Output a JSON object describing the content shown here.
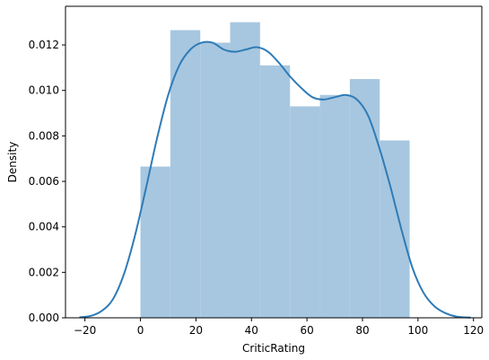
{
  "chart_data": {
    "type": "bar",
    "title": "",
    "xlabel": "CriticRating",
    "ylabel": "Density",
    "xlim": [
      -27,
      123
    ],
    "ylim": [
      0,
      0.0137
    ],
    "grid": false,
    "legend": "none",
    "x_ticks": [
      {
        "value": -20,
        "label": "−20"
      },
      {
        "value": 0,
        "label": "0"
      },
      {
        "value": 20,
        "label": "20"
      },
      {
        "value": 40,
        "label": "40"
      },
      {
        "value": 60,
        "label": "60"
      },
      {
        "value": 80,
        "label": "80"
      },
      {
        "value": 100,
        "label": "100"
      },
      {
        "value": 120,
        "label": "120"
      }
    ],
    "y_ticks": [
      {
        "value": 0,
        "label": "0.000"
      },
      {
        "value": 0.002,
        "label": "0.002"
      },
      {
        "value": 0.004,
        "label": "0.004"
      },
      {
        "value": 0.006,
        "label": "0.006"
      },
      {
        "value": 0.008,
        "label": "0.008"
      },
      {
        "value": 0.01,
        "label": "0.010"
      },
      {
        "value": 0.012,
        "label": "0.012"
      }
    ],
    "histogram": {
      "bin_edges": [
        0,
        10.78,
        21.56,
        32.33,
        43.11,
        53.89,
        64.67,
        75.44,
        86.22,
        97
      ],
      "density": [
        0.00665,
        0.01265,
        0.0121,
        0.013,
        0.0111,
        0.0093,
        0.0098,
        0.0105,
        0.0078
      ],
      "color": "#a7c7e0"
    },
    "kde": {
      "color": "#2f7bb6",
      "x": [
        -22,
        -18,
        -14,
        -10,
        -6,
        -2,
        2,
        6,
        10,
        14,
        18,
        22,
        26,
        30,
        34,
        38,
        42,
        46,
        50,
        54,
        58,
        62,
        66,
        70,
        74,
        78,
        82,
        86,
        90,
        94,
        98,
        102,
        106,
        110,
        114,
        119
      ],
      "y": [
        2e-05,
        8e-05,
        0.0003,
        0.0008,
        0.0019,
        0.0036,
        0.0057,
        0.0079,
        0.0098,
        0.0111,
        0.0118,
        0.0121,
        0.0121,
        0.0118,
        0.0117,
        0.0118,
        0.0119,
        0.0117,
        0.0112,
        0.0106,
        0.0101,
        0.0097,
        0.0096,
        0.0097,
        0.0098,
        0.0096,
        0.0089,
        0.0075,
        0.0058,
        0.0039,
        0.0022,
        0.0011,
        0.0005,
        0.0002,
        5e-05,
        1e-05
      ]
    }
  }
}
